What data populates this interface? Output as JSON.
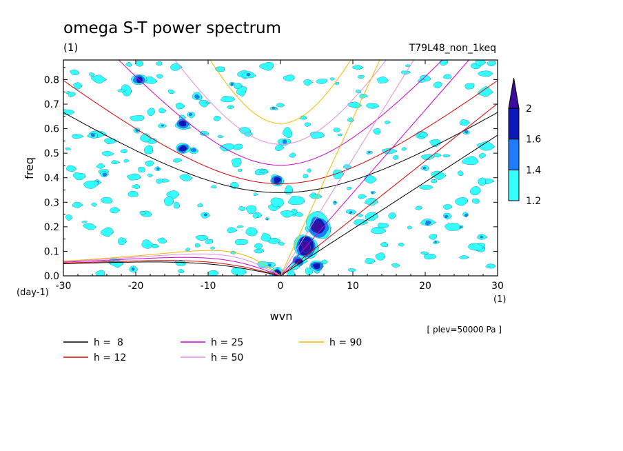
{
  "chart_data": {
    "type": "contour",
    "title": "omega S-T power spectrum",
    "subtitle_left": "(1)",
    "subtitle_right": "T79L48_non_1keq",
    "xlabel": "wvn",
    "ylabel": "freq",
    "x_units": "(1)",
    "y_units": "(day-1)",
    "footnote": "[ plev=50000 Pa ]",
    "xlim": [
      -30,
      30
    ],
    "ylim": [
      0,
      0.88
    ],
    "x_ticks": [
      -30,
      -20,
      -10,
      0,
      10,
      20,
      30
    ],
    "x_tick_labels": [
      "-30",
      "-20",
      "-10",
      "0",
      "10",
      "20",
      "30"
    ],
    "y_ticks": [
      0,
      0.1,
      0.2,
      0.3,
      0.4,
      0.5,
      0.6,
      0.7,
      0.8
    ],
    "y_tick_labels": [
      "0.0",
      "0.1",
      "0.2",
      "0.3",
      "0.4",
      "0.5",
      "0.6",
      "0.7",
      "0.8"
    ],
    "colorbar": {
      "levels": [
        1.2,
        1.4,
        1.6,
        2
      ],
      "labels": [
        "1.2",
        "1.4",
        "1.6",
        "2"
      ],
      "colors": [
        "#33ffff",
        "#1e7cff",
        "#0b18b8",
        "#3c0c9e"
      ]
    },
    "equivalent_depths": [
      {
        "label": "h =  8",
        "h": 8,
        "color": "#000000"
      },
      {
        "label": "h = 12",
        "h": 12,
        "color": "#e00000"
      },
      {
        "label": "h = 25",
        "h": 25,
        "color": "#cc00cc"
      },
      {
        "label": "h = 50",
        "h": 50,
        "color": "#e08ce0"
      },
      {
        "label": "h = 90",
        "h": 90,
        "color": "#f0b800"
      }
    ],
    "power_features": [
      {
        "wvn": 3.5,
        "freq": 0.12,
        "level": 2
      },
      {
        "wvn": 5.2,
        "freq": 0.2,
        "level": 2
      },
      {
        "wvn": 2.5,
        "freq": 0.06,
        "level": 1.6
      },
      {
        "wvn": 5.0,
        "freq": 0.04,
        "level": 1.6
      },
      {
        "wvn": -13.5,
        "freq": 0.52,
        "level": 1.6
      },
      {
        "wvn": -13.5,
        "freq": 0.62,
        "level": 1.6
      },
      {
        "wvn": -19.5,
        "freq": 0.8,
        "level": 1.6
      },
      {
        "wvn": -0.5,
        "freq": 0.39,
        "level": 1.6
      },
      {
        "wvn": -0.5,
        "freq": 0.01,
        "level": 1.6
      }
    ]
  }
}
